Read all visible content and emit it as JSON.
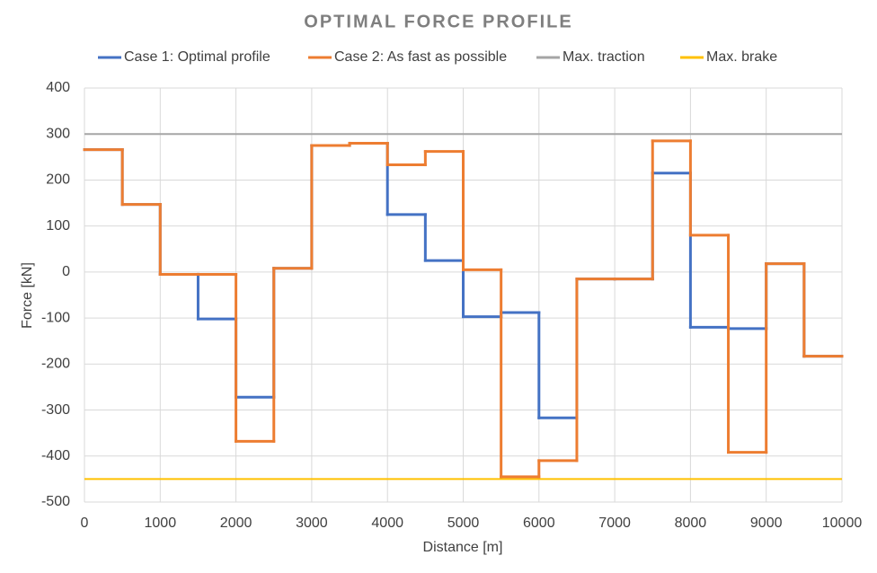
{
  "chart_data": {
    "type": "line",
    "step": "post",
    "title": "OPTIMAL FORCE PROFILE",
    "x_label": "Distance [m]",
    "y_label": "Force [kN]",
    "x": [
      0,
      500,
      1000,
      1500,
      2000,
      2500,
      3000,
      3500,
      4000,
      4500,
      5000,
      5500,
      6000,
      6500,
      7000,
      7500,
      8000,
      8500,
      9000,
      9500
    ],
    "series": [
      {
        "name": "Case 1: Optimal profile",
        "color": "#4472c4",
        "values": [
          266,
          147,
          -5,
          -102,
          -272,
          8,
          275,
          280,
          125,
          25,
          -97,
          -88,
          -317,
          -15,
          -15,
          215,
          -120,
          -123,
          18,
          -183
        ]
      },
      {
        "name": "Case 2: As fast as possible",
        "color": "#ed7d31",
        "values": [
          266,
          147,
          -5,
          -5,
          -368,
          8,
          275,
          280,
          233,
          262,
          5,
          -445,
          -410,
          -15,
          -15,
          285,
          80,
          -392,
          18,
          -183
        ]
      }
    ],
    "hlines": [
      {
        "name": "Max. traction",
        "color": "#a5a5a5",
        "value": 300
      },
      {
        "name": "Max. brake",
        "color": "#ffc000",
        "value": -450
      }
    ],
    "xlim": [
      0,
      10000
    ],
    "xticks": [
      0,
      1000,
      2000,
      3000,
      4000,
      5000,
      6000,
      7000,
      8000,
      9000,
      10000
    ],
    "ylim": [
      -500,
      400
    ],
    "yticks": [
      -500,
      -400,
      -300,
      -200,
      -100,
      0,
      100,
      200,
      300,
      400
    ],
    "grid": true,
    "legend": "top"
  }
}
